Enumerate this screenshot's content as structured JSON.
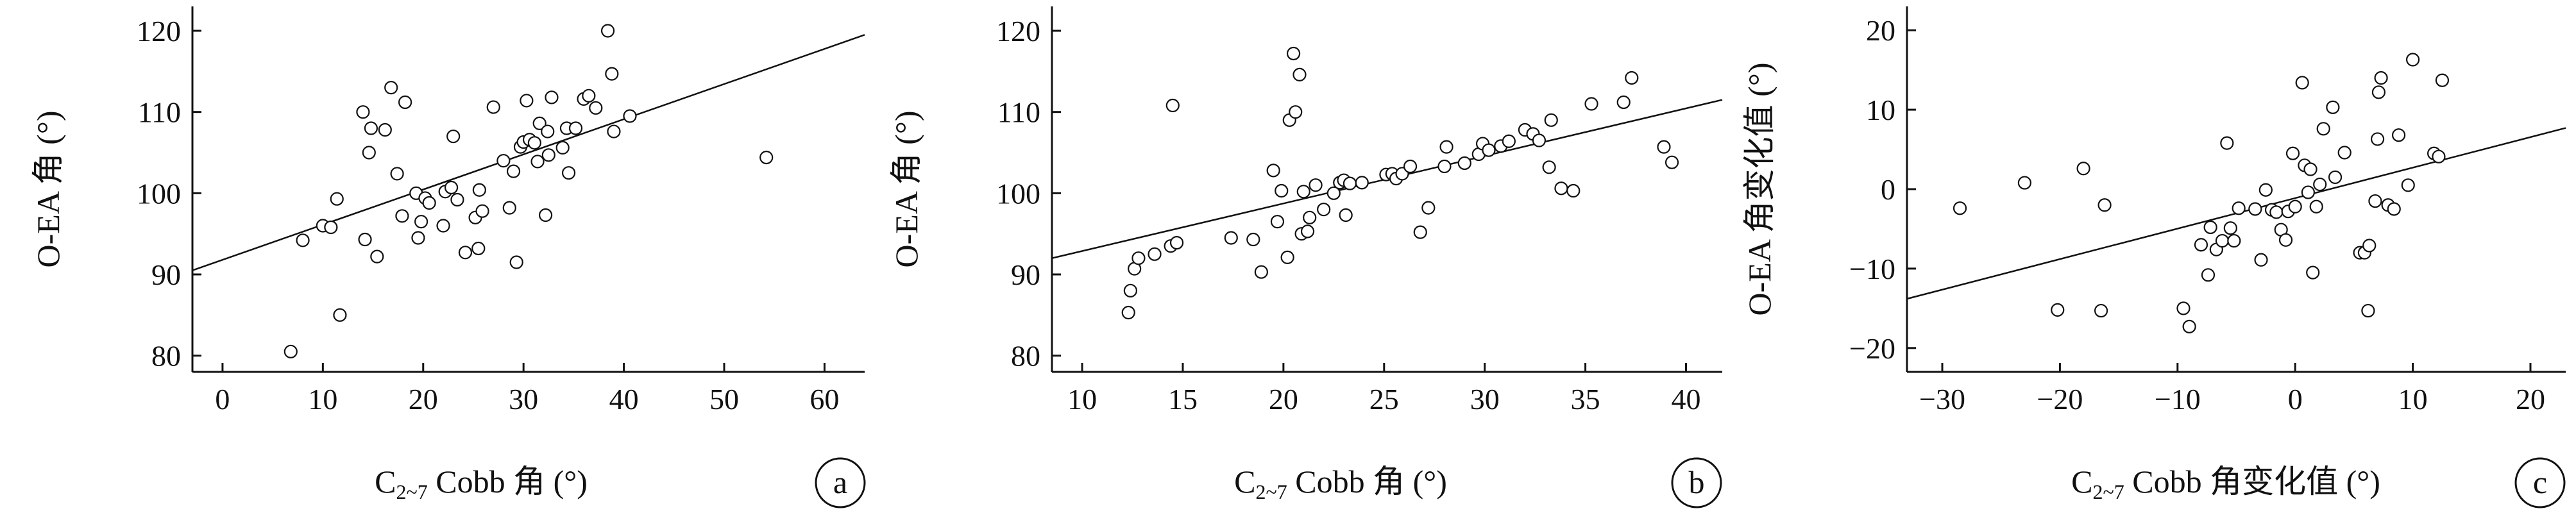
{
  "chart_data": [
    {
      "type": "scatter",
      "panel_label": "a",
      "xlabel_main": "C",
      "xlabel_sub": "2~7",
      "xlabel_rest": " Cobb 角 (°)",
      "ylabel": "O-EA 角 (°)",
      "xlim": [
        -3,
        64
      ],
      "ylim": [
        78,
        123
      ],
      "xticks": [
        0,
        10,
        20,
        30,
        40,
        50,
        60
      ],
      "yticks": [
        80,
        90,
        100,
        110,
        120
      ],
      "fit_line": {
        "x": [
          -3,
          64
        ],
        "y": [
          90.5,
          119.5
        ]
      },
      "points": [
        [
          6.8,
          80.5
        ],
        [
          8,
          94.2
        ],
        [
          10,
          96
        ],
        [
          10.8,
          95.8
        ],
        [
          11.4,
          99.3
        ],
        [
          11.7,
          85
        ],
        [
          14,
          110
        ],
        [
          14.6,
          105
        ],
        [
          14.2,
          94.3
        ],
        [
          14.8,
          108
        ],
        [
          15.4,
          92.2
        ],
        [
          16.2,
          107.8
        ],
        [
          16.8,
          113
        ],
        [
          17.4,
          102.4
        ],
        [
          17.9,
          97.2
        ],
        [
          18.2,
          111.2
        ],
        [
          19.3,
          100
        ],
        [
          19.5,
          94.5
        ],
        [
          19.8,
          96.5
        ],
        [
          20.2,
          99.4
        ],
        [
          20.6,
          98.8
        ],
        [
          22,
          96
        ],
        [
          22.2,
          100.2
        ],
        [
          22.8,
          100.7
        ],
        [
          23,
          107
        ],
        [
          23.4,
          99.2
        ],
        [
          24.2,
          92.7
        ],
        [
          25.2,
          97
        ],
        [
          25.5,
          93.2
        ],
        [
          25.9,
          97.8
        ],
        [
          25.6,
          100.4
        ],
        [
          27,
          110.6
        ],
        [
          28,
          104
        ],
        [
          28.6,
          98.2
        ],
        [
          29,
          102.7
        ],
        [
          29.3,
          91.5
        ],
        [
          29.7,
          105.7
        ],
        [
          30,
          106.3
        ],
        [
          30.3,
          111.4
        ],
        [
          30.6,
          106.6
        ],
        [
          31.1,
          106.2
        ],
        [
          31.4,
          103.9
        ],
        [
          31.6,
          108.6
        ],
        [
          32.2,
          97.3
        ],
        [
          32.4,
          107.6
        ],
        [
          32.5,
          104.7
        ],
        [
          32.8,
          111.8
        ],
        [
          33.9,
          105.6
        ],
        [
          34.3,
          108
        ],
        [
          34.5,
          102.5
        ],
        [
          35.2,
          108
        ],
        [
          36,
          111.6
        ],
        [
          36.5,
          112
        ],
        [
          37.2,
          110.5
        ],
        [
          38.4,
          120
        ],
        [
          38.8,
          114.7
        ],
        [
          39,
          107.6
        ],
        [
          40.6,
          109.5
        ],
        [
          54.2,
          104.4
        ]
      ]
    },
    {
      "type": "scatter",
      "panel_label": "b",
      "xlabel_main": "C",
      "xlabel_sub": "2~7",
      "xlabel_rest": " Cobb 角 (°)",
      "ylabel": "O-EA 角 (°)",
      "xlim": [
        8.5,
        41.8
      ],
      "ylim": [
        78,
        123
      ],
      "xticks": [
        10,
        15,
        20,
        25,
        30,
        35,
        40
      ],
      "yticks": [
        80,
        90,
        100,
        110,
        120
      ],
      "fit_line": {
        "x": [
          8.5,
          41.8
        ],
        "y": [
          92,
          111.5
        ]
      },
      "points": [
        [
          12.3,
          85.3
        ],
        [
          12.4,
          88
        ],
        [
          12.6,
          90.7
        ],
        [
          12.8,
          92
        ],
        [
          13.6,
          92.5
        ],
        [
          14.4,
          93.5
        ],
        [
          14.5,
          110.8
        ],
        [
          14.7,
          93.9
        ],
        [
          17.4,
          94.5
        ],
        [
          18.5,
          94.3
        ],
        [
          18.9,
          90.3
        ],
        [
          19.5,
          102.8
        ],
        [
          19.7,
          96.5
        ],
        [
          19.9,
          100.3
        ],
        [
          20.2,
          92.1
        ],
        [
          20.3,
          109
        ],
        [
          20.5,
          117.2
        ],
        [
          20.6,
          110
        ],
        [
          20.8,
          114.6
        ],
        [
          20.9,
          95
        ],
        [
          21,
          100.2
        ],
        [
          21.2,
          95.3
        ],
        [
          21.3,
          97
        ],
        [
          21.6,
          101
        ],
        [
          22,
          98
        ],
        [
          22.5,
          100
        ],
        [
          22.8,
          101.3
        ],
        [
          23,
          101.6
        ],
        [
          23.1,
          97.3
        ],
        [
          23.3,
          101.2
        ],
        [
          23.9,
          101.3
        ],
        [
          25.1,
          102.3
        ],
        [
          25.4,
          102.4
        ],
        [
          25.6,
          101.8
        ],
        [
          25.9,
          102.4
        ],
        [
          26.3,
          103.3
        ],
        [
          26.8,
          95.2
        ],
        [
          27.2,
          98.2
        ],
        [
          28,
          103.3
        ],
        [
          28.1,
          105.7
        ],
        [
          29,
          103.7
        ],
        [
          29.7,
          104.8
        ],
        [
          29.9,
          106.1
        ],
        [
          30.2,
          105.3
        ],
        [
          30.8,
          105.8
        ],
        [
          31.2,
          106.4
        ],
        [
          32,
          107.8
        ],
        [
          32.4,
          107.3
        ],
        [
          32.7,
          106.5
        ],
        [
          33.2,
          103.2
        ],
        [
          33.3,
          109
        ],
        [
          33.8,
          100.6
        ],
        [
          34.4,
          100.3
        ],
        [
          35.3,
          111
        ],
        [
          36.9,
          111.2
        ],
        [
          37.3,
          114.2
        ],
        [
          38.9,
          105.7
        ],
        [
          39.3,
          103.8
        ]
      ]
    },
    {
      "type": "scatter",
      "panel_label": "c",
      "xlabel_main": "C",
      "xlabel_sub": "2~7",
      "xlabel_rest": " Cobb 角变化值 (°)",
      "ylabel": "O-EA 角变化值 (°)",
      "xlim": [
        -33,
        23
      ],
      "ylim": [
        -23,
        23
      ],
      "xticks": [
        -30,
        -20,
        -10,
        0,
        10,
        20
      ],
      "yticks": [
        -20,
        -10,
        0,
        10,
        20
      ],
      "fit_line": {
        "x": [
          -33,
          23
        ],
        "y": [
          -13.8,
          7.7
        ]
      },
      "points": [
        [
          -28.5,
          -2.4
        ],
        [
          -23,
          0.8
        ],
        [
          -20.2,
          -15.2
        ],
        [
          -18,
          2.6
        ],
        [
          -16.5,
          -15.3
        ],
        [
          -16.2,
          -2
        ],
        [
          -9.5,
          -15
        ],
        [
          -9,
          -17.3
        ],
        [
          -8,
          -7
        ],
        [
          -7.4,
          -10.8
        ],
        [
          -7.2,
          -4.8
        ],
        [
          -6.7,
          -7.6
        ],
        [
          -6.2,
          -6.5
        ],
        [
          -5.8,
          5.8
        ],
        [
          -5.5,
          -4.9
        ],
        [
          -5.2,
          -6.5
        ],
        [
          -4.8,
          -2.4
        ],
        [
          -3.4,
          -2.5
        ],
        [
          -2.9,
          -8.9
        ],
        [
          -2.5,
          -0.1
        ],
        [
          -2,
          -2.6
        ],
        [
          -1.6,
          -2.9
        ],
        [
          -1.2,
          -5.1
        ],
        [
          -0.8,
          -6.4
        ],
        [
          -0.6,
          -2.8
        ],
        [
          -0.2,
          4.5
        ],
        [
          0,
          -2.2
        ],
        [
          0.6,
          13.4
        ],
        [
          0.8,
          3
        ],
        [
          1.1,
          -0.4
        ],
        [
          1.3,
          2.5
        ],
        [
          1.5,
          -10.5
        ],
        [
          1.8,
          -2.2
        ],
        [
          2.1,
          0.6
        ],
        [
          2.4,
          7.6
        ],
        [
          3.2,
          10.3
        ],
        [
          3.4,
          1.5
        ],
        [
          4.2,
          4.6
        ],
        [
          5.5,
          -8
        ],
        [
          5.9,
          -8
        ],
        [
          6.2,
          -15.3
        ],
        [
          6.3,
          -7.1
        ],
        [
          6.8,
          -1.5
        ],
        [
          7,
          6.3
        ],
        [
          7.1,
          12.2
        ],
        [
          7.3,
          14
        ],
        [
          7.9,
          -2
        ],
        [
          8.4,
          -2.5
        ],
        [
          8.8,
          6.8
        ],
        [
          9.6,
          0.5
        ],
        [
          10,
          16.3
        ],
        [
          11.8,
          4.5
        ],
        [
          12.2,
          4.1
        ],
        [
          12.5,
          13.7
        ]
      ]
    }
  ]
}
